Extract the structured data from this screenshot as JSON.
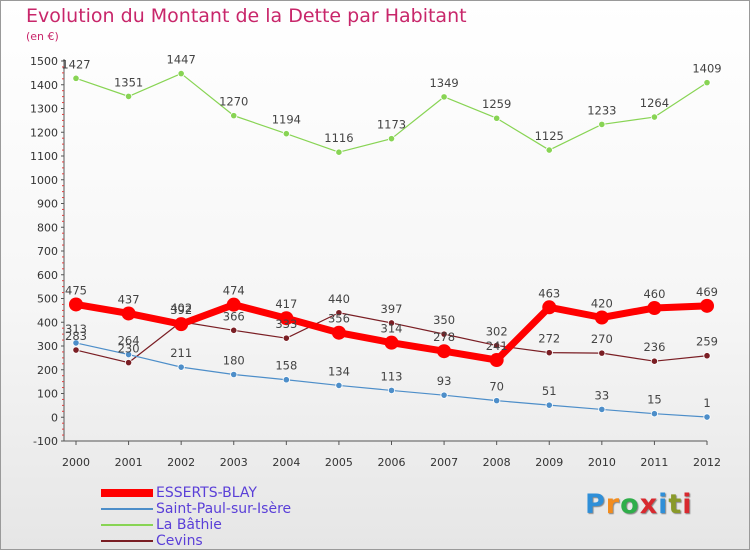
{
  "title": "Evolution du Montant de la Dette par Habitant",
  "subtitle": "(en €)",
  "chart_data": {
    "type": "line",
    "x": [
      "2000",
      "2001",
      "2002",
      "2003",
      "2004",
      "2005",
      "2006",
      "2007",
      "2008",
      "2009",
      "2010",
      "2011",
      "2012"
    ],
    "ylim": [
      -100,
      1500
    ],
    "y_ticks": [
      -100,
      0,
      100,
      200,
      300,
      400,
      500,
      600,
      700,
      800,
      900,
      1000,
      1100,
      1200,
      1300,
      1400,
      1500
    ],
    "grid": false,
    "legend_position": "bottom-left",
    "series": [
      {
        "name": "ESSERTS-BLAY",
        "color": "#ff0000",
        "style": "thick",
        "values": [
          475,
          437,
          392,
          474,
          417,
          356,
          314,
          278,
          241,
          463,
          420,
          460,
          469
        ],
        "labels": [
          "475",
          "437",
          "392",
          "474",
          "417",
          "356",
          "314",
          "278",
          "241",
          "463",
          "420",
          "460",
          "469"
        ]
      },
      {
        "name": "Saint-Paul-sur-Isère",
        "color": "#4d8ec9",
        "style": "thin",
        "values": [
          313,
          264,
          211,
          180,
          158,
          134,
          113,
          93,
          70,
          51,
          33,
          15,
          1
        ],
        "labels": [
          "313",
          "264",
          "211",
          "180",
          "158",
          "134",
          "113",
          "93",
          "70",
          "51",
          "33",
          "15",
          "1"
        ]
      },
      {
        "name": "La Bâthie",
        "color": "#88d454",
        "style": "thin",
        "values": [
          1427,
          1351,
          1447,
          1270,
          1194,
          1116,
          1173,
          1349,
          1259,
          1125,
          1233,
          1264,
          1409
        ],
        "labels": [
          "1427",
          "1351",
          "1447",
          "1270",
          "1194",
          "1116",
          "1173",
          "1349",
          "1259",
          "1125",
          "1233",
          "1264",
          "1409"
        ]
      },
      {
        "name": "Cevins",
        "color": "#7a1e24",
        "style": "thin",
        "values": [
          283,
          230,
          402,
          366,
          333,
          440,
          397,
          350,
          302,
          272,
          270,
          236,
          259
        ],
        "labels": [
          "283",
          "230",
          "402",
          "366",
          "333",
          "440",
          "397",
          "350",
          "302",
          "272",
          "270",
          "236",
          "259"
        ]
      }
    ]
  },
  "logo": {
    "letters": [
      "P",
      "r",
      "o",
      "x",
      "i",
      "t",
      "i"
    ],
    "colors": [
      "#2f8fd8",
      "#f28c1e",
      "#2fae4a",
      "#d8292f",
      "#2f8fd8",
      "#8a9a2a",
      "#d8292f"
    ]
  }
}
